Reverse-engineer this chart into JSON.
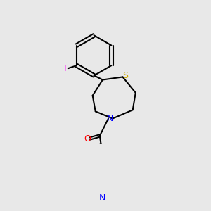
{
  "background_color": "#e8e8e8",
  "atom_colors": {
    "F": "#ff00ff",
    "S": "#ccaa00",
    "N": "#0000ff",
    "O": "#ff0000",
    "C": "#000000"
  },
  "bond_color": "#000000",
  "bond_width": 1.5,
  "font_size_atom": 9
}
